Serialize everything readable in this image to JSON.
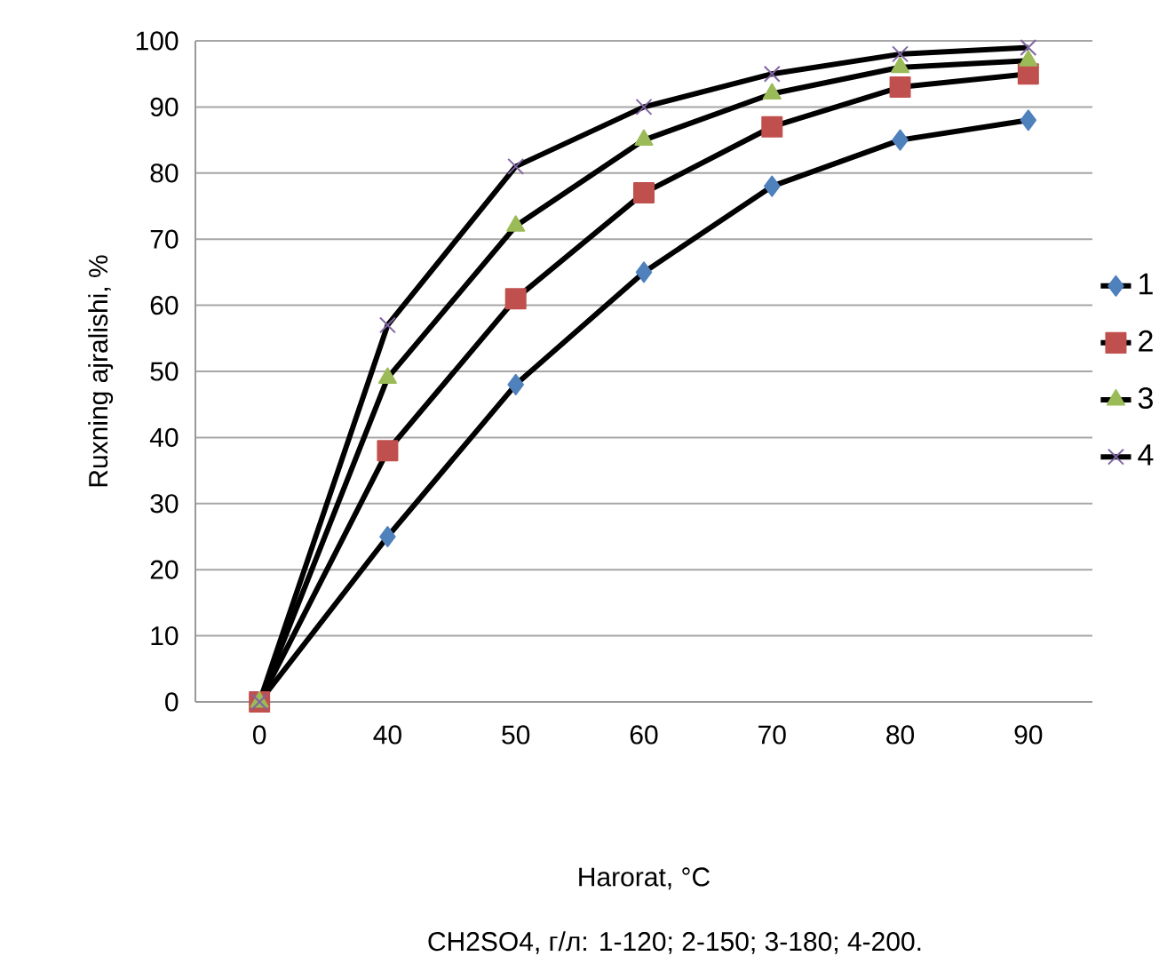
{
  "chart_data": {
    "type": "line",
    "xlabel": "Harorat, °C",
    "ylabel": "Ruxning ajralishi, %",
    "annotations": [
      "CH2SO4, г/л: 1-120; 2-150; 3-180; 4-200."
    ],
    "categories": [
      "0",
      "40",
      "50",
      "60",
      "70",
      "80",
      "90"
    ],
    "ylim": [
      0,
      100
    ],
    "yticks": [
      0,
      10,
      20,
      30,
      40,
      50,
      60,
      70,
      80,
      90,
      100
    ],
    "grid": "y",
    "legend": "right",
    "line_style": "solid",
    "series": [
      {
        "name": "1",
        "color": "#4f81bd",
        "marker": "diamond",
        "values": [
          0,
          25,
          48,
          65,
          78,
          85,
          88
        ]
      },
      {
        "name": "2",
        "color": "#c0504d",
        "marker": "square",
        "values": [
          0,
          38,
          61,
          77,
          87,
          93,
          95
        ]
      },
      {
        "name": "3",
        "color": "#9bbb59",
        "marker": "triangle",
        "values": [
          0,
          49,
          72,
          85,
          92,
          96,
          97
        ]
      },
      {
        "name": "4",
        "color": "#8064a2",
        "marker": "cross",
        "values": [
          0,
          57,
          81,
          90,
          95,
          98,
          99
        ]
      }
    ]
  }
}
